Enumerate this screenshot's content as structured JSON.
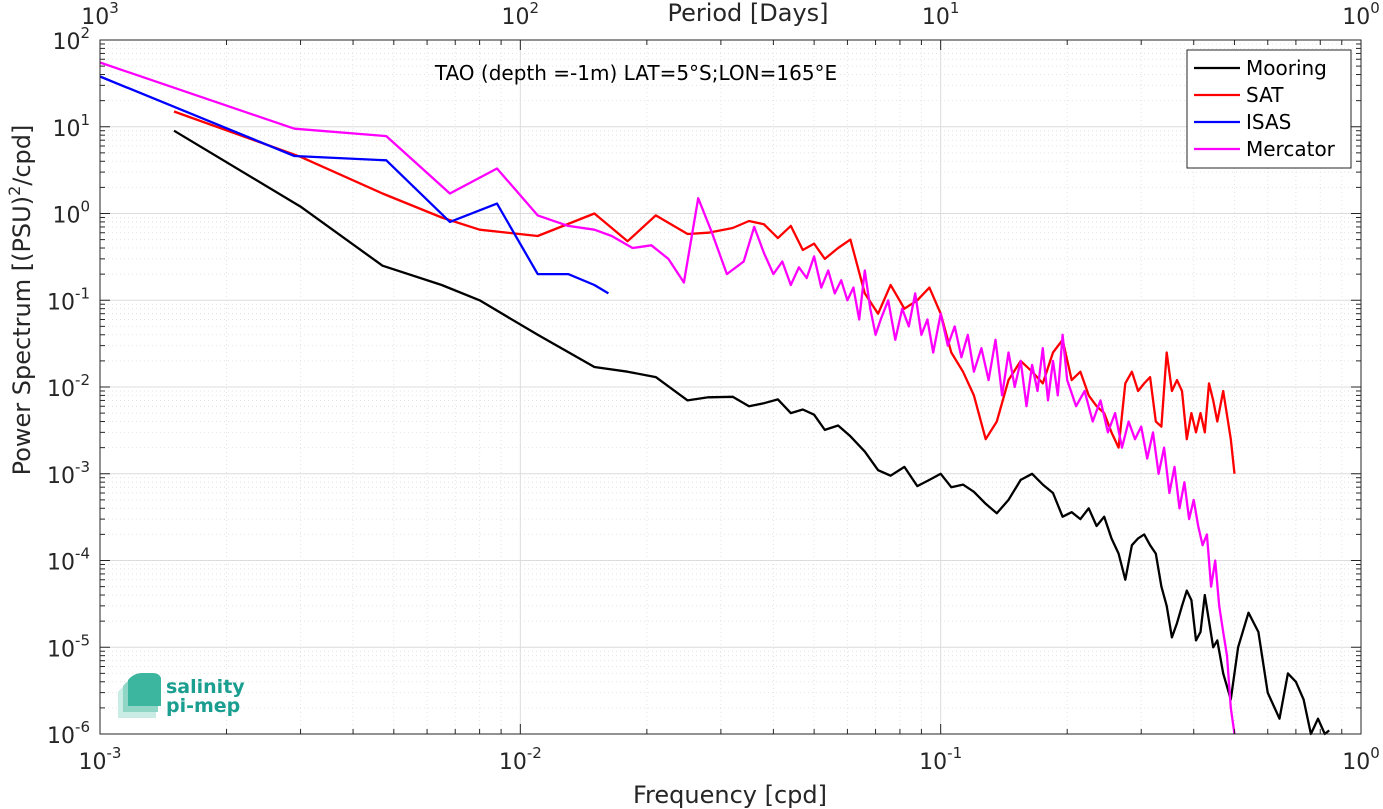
{
  "chart_data": {
    "type": "line",
    "xscale": "log",
    "yscale": "log",
    "xlim": [
      0.001,
      1
    ],
    "ylim": [
      1e-06,
      100
    ],
    "grid": true,
    "minor_grid": true,
    "xlabel": "Frequency [cpd]",
    "top_xlabel": "Period [Days]",
    "annotation": "TAO (depth =-1m) LAT=5°S;LON=165°E",
    "legend_position": "top-right",
    "x_ticks": [
      {
        "base": "10",
        "exp": "-3"
      },
      {
        "base": "10",
        "exp": "-2"
      },
      {
        "base": "10",
        "exp": "-1"
      },
      {
        "base": "10",
        "exp": "0"
      }
    ],
    "top_ticks": [
      {
        "base": "10",
        "exp": "3"
      },
      {
        "base": "10",
        "exp": "2"
      },
      {
        "base": "10",
        "exp": "1"
      },
      {
        "base": "10",
        "exp": "0"
      }
    ],
    "y_ticks": [
      {
        "base": "10",
        "exp": "2"
      },
      {
        "base": "10",
        "exp": "1"
      },
      {
        "base": "10",
        "exp": "0"
      },
      {
        "base": "10",
        "exp": "-1"
      },
      {
        "base": "10",
        "exp": "-2"
      },
      {
        "base": "10",
        "exp": "-3"
      },
      {
        "base": "10",
        "exp": "-4"
      },
      {
        "base": "10",
        "exp": "-5"
      },
      {
        "base": "10",
        "exp": "-6"
      }
    ],
    "ylabel": {
      "pre": "Power Spectrum [(PSU)",
      "sup": "2",
      "post": "/cpd]"
    },
    "series": [
      {
        "name": "Mooring",
        "color": "#000000",
        "x": [
          0.0015,
          0.003,
          0.0047,
          0.0065,
          0.008,
          0.011,
          0.015,
          0.018,
          0.021,
          0.025,
          0.028,
          0.032,
          0.035,
          0.038,
          0.041,
          0.044,
          0.047,
          0.05,
          0.053,
          0.057,
          0.061,
          0.066,
          0.071,
          0.076,
          0.082,
          0.088,
          0.094,
          0.1,
          0.106,
          0.113,
          0.12,
          0.128,
          0.136,
          0.145,
          0.155,
          0.165,
          0.175,
          0.185,
          0.195,
          0.205,
          0.215,
          0.225,
          0.235,
          0.245,
          0.255,
          0.265,
          0.275,
          0.285,
          0.295,
          0.305,
          0.315,
          0.325,
          0.335,
          0.345,
          0.355,
          0.365,
          0.375,
          0.385,
          0.395,
          0.405,
          0.415,
          0.425,
          0.435,
          0.445,
          0.455,
          0.47,
          0.49,
          0.51,
          0.54,
          0.57,
          0.6,
          0.64,
          0.67,
          0.7,
          0.73,
          0.76,
          0.79,
          0.82,
          0.84
        ],
        "y": [
          9,
          1.2,
          0.25,
          0.15,
          0.1,
          0.04,
          0.017,
          0.015,
          0.013,
          0.007,
          0.0076,
          0.0077,
          0.006,
          0.0065,
          0.0072,
          0.005,
          0.0055,
          0.0048,
          0.0032,
          0.0036,
          0.0027,
          0.0018,
          0.0011,
          0.00095,
          0.0012,
          0.00072,
          0.00085,
          0.001,
          0.0007,
          0.00075,
          0.00062,
          0.00045,
          0.00035,
          0.0005,
          0.00085,
          0.001,
          0.00075,
          0.0006,
          0.00032,
          0.00036,
          0.0003,
          0.0004,
          0.00025,
          0.00032,
          0.00018,
          0.00012,
          6e-05,
          0.00015,
          0.00018,
          0.0002,
          0.00015,
          0.00012,
          5e-05,
          3e-05,
          1.3e-05,
          1.9e-05,
          3e-05,
          4.5e-05,
          3.5e-05,
          1.2e-05,
          1.5e-05,
          4e-05,
          2e-05,
          1e-05,
          1.2e-05,
          5e-06,
          2.5e-06,
          1e-05,
          2.5e-05,
          1.5e-05,
          3e-06,
          1.5e-06,
          5e-06,
          4e-06,
          2.5e-06,
          1e-06,
          1.5e-06,
          1e-06,
          1.1e-06
        ]
      },
      {
        "name": "SAT",
        "color": "#ff0000",
        "x": [
          0.0015,
          0.003,
          0.0047,
          0.0065,
          0.008,
          0.011,
          0.015,
          0.018,
          0.021,
          0.025,
          0.028,
          0.032,
          0.035,
          0.038,
          0.041,
          0.044,
          0.047,
          0.05,
          0.053,
          0.057,
          0.061,
          0.066,
          0.071,
          0.076,
          0.082,
          0.088,
          0.094,
          0.1,
          0.106,
          0.113,
          0.12,
          0.128,
          0.136,
          0.145,
          0.155,
          0.165,
          0.175,
          0.185,
          0.195,
          0.205,
          0.215,
          0.225,
          0.235,
          0.245,
          0.255,
          0.265,
          0.275,
          0.285,
          0.295,
          0.305,
          0.315,
          0.325,
          0.335,
          0.345,
          0.355,
          0.365,
          0.375,
          0.385,
          0.395,
          0.405,
          0.415,
          0.425,
          0.435,
          0.445,
          0.455,
          0.47,
          0.49,
          0.5
        ],
        "y": [
          15,
          4.5,
          1.7,
          0.9,
          0.65,
          0.55,
          1,
          0.48,
          0.95,
          0.58,
          0.6,
          0.68,
          0.82,
          0.75,
          0.52,
          0.72,
          0.38,
          0.45,
          0.3,
          0.4,
          0.5,
          0.12,
          0.07,
          0.15,
          0.08,
          0.1,
          0.14,
          0.07,
          0.025,
          0.015,
          0.008,
          0.0025,
          0.004,
          0.012,
          0.02,
          0.015,
          0.011,
          0.025,
          0.035,
          0.012,
          0.015,
          0.008,
          0.006,
          0.005,
          0.003,
          0.002,
          0.011,
          0.015,
          0.009,
          0.011,
          0.013,
          0.004,
          0.0035,
          0.025,
          0.009,
          0.012,
          0.009,
          0.0025,
          0.005,
          0.003,
          0.005,
          0.003,
          0.011,
          0.007,
          0.004,
          0.009,
          0.0025,
          0.001
        ]
      },
      {
        "name": "ISAS",
        "color": "#0000ff",
        "x": [
          0.001,
          0.0029,
          0.0048,
          0.0068,
          0.0088,
          0.011,
          0.013,
          0.015,
          0.0162
        ],
        "y": [
          38,
          4.6,
          4.1,
          0.8,
          1.3,
          0.2,
          0.2,
          0.15,
          0.12
        ]
      },
      {
        "name": "Mercator",
        "color": "#ff00ff",
        "x": [
          0.001,
          0.0029,
          0.0048,
          0.0068,
          0.0088,
          0.011,
          0.013,
          0.015,
          0.0165,
          0.0185,
          0.0205,
          0.0225,
          0.0245,
          0.0265,
          0.0285,
          0.031,
          0.034,
          0.036,
          0.038,
          0.04,
          0.042,
          0.044,
          0.046,
          0.048,
          0.05,
          0.052,
          0.054,
          0.056,
          0.058,
          0.06,
          0.062,
          0.064,
          0.066,
          0.068,
          0.07,
          0.072,
          0.075,
          0.078,
          0.081,
          0.084,
          0.087,
          0.09,
          0.093,
          0.096,
          0.1,
          0.104,
          0.108,
          0.112,
          0.116,
          0.12,
          0.125,
          0.13,
          0.135,
          0.14,
          0.145,
          0.15,
          0.155,
          0.16,
          0.165,
          0.17,
          0.175,
          0.18,
          0.185,
          0.19,
          0.195,
          0.2,
          0.21,
          0.22,
          0.23,
          0.24,
          0.25,
          0.26,
          0.27,
          0.28,
          0.29,
          0.3,
          0.31,
          0.32,
          0.33,
          0.34,
          0.35,
          0.36,
          0.37,
          0.38,
          0.39,
          0.4,
          0.41,
          0.42,
          0.43,
          0.44,
          0.45,
          0.46,
          0.47,
          0.48,
          0.49,
          0.5
        ],
        "y": [
          55,
          9.5,
          7.8,
          1.7,
          3.3,
          0.95,
          0.72,
          0.65,
          0.55,
          0.4,
          0.43,
          0.3,
          0.16,
          1.5,
          0.62,
          0.2,
          0.28,
          0.7,
          0.35,
          0.2,
          0.28,
          0.15,
          0.24,
          0.18,
          0.32,
          0.14,
          0.22,
          0.12,
          0.17,
          0.1,
          0.14,
          0.06,
          0.22,
          0.08,
          0.04,
          0.06,
          0.1,
          0.035,
          0.08,
          0.05,
          0.12,
          0.04,
          0.06,
          0.025,
          0.07,
          0.03,
          0.05,
          0.022,
          0.04,
          0.015,
          0.028,
          0.012,
          0.035,
          0.008,
          0.025,
          0.01,
          0.02,
          0.006,
          0.018,
          0.009,
          0.028,
          0.007,
          0.02,
          0.008,
          0.04,
          0.012,
          0.006,
          0.009,
          0.004,
          0.007,
          0.003,
          0.005,
          0.002,
          0.004,
          0.0025,
          0.0035,
          0.0015,
          0.003,
          0.001,
          0.002,
          0.0006,
          0.0012,
          0.0004,
          0.0008,
          0.0003,
          0.0005,
          0.00025,
          0.00015,
          0.0002,
          5e-05,
          0.0001,
          3e-05,
          1.5e-05,
          8e-06,
          2e-06,
          1e-06
        ]
      }
    ]
  },
  "logo": {
    "line1": "salinity",
    "line2": "pi-mep"
  }
}
